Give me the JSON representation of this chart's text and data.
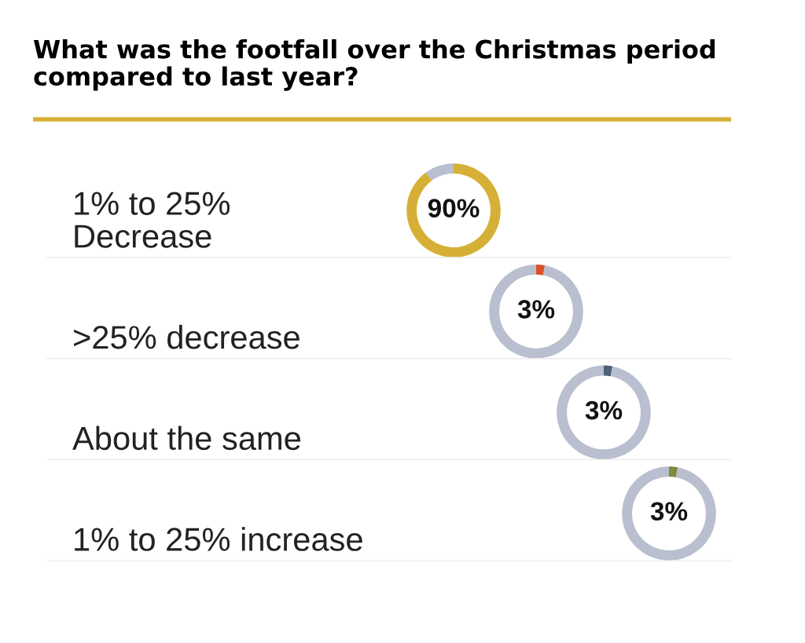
{
  "chart_data": [
    {
      "type": "other",
      "title": "What was the footfall over the Christmas period\ncompared to last year?"
    },
    {
      "type": "donut",
      "title": "1% to 25%\nDecrease",
      "categories": [
        null,
        null
      ],
      "values": [
        90,
        10
      ],
      "colors": [
        "#d6b036",
        "#b9bfcf"
      ],
      "value_labels": [
        "90%",
        null
      ]
    },
    {
      "type": "donut",
      "title": ">25% decrease",
      "categories": [
        null,
        null
      ],
      "values": [
        3,
        97
      ],
      "colors": [
        "#d9512c",
        "#b9bfcf"
      ],
      "value_labels": [
        "3%",
        null
      ]
    },
    {
      "type": "donut",
      "title": "About the same",
      "categories": [
        null,
        null
      ],
      "values": [
        3,
        97
      ],
      "colors": [
        "#4f6178",
        "#b9bfcf"
      ],
      "value_labels": [
        "3%",
        null
      ]
    },
    {
      "type": "donut",
      "title": "1% to 25% increase",
      "categories": [
        null,
        null
      ],
      "values": [
        3,
        97
      ],
      "colors": [
        "#7f8a3a",
        "#b9bfcf"
      ],
      "value_labels": [
        "3%",
        null
      ]
    }
  ]
}
